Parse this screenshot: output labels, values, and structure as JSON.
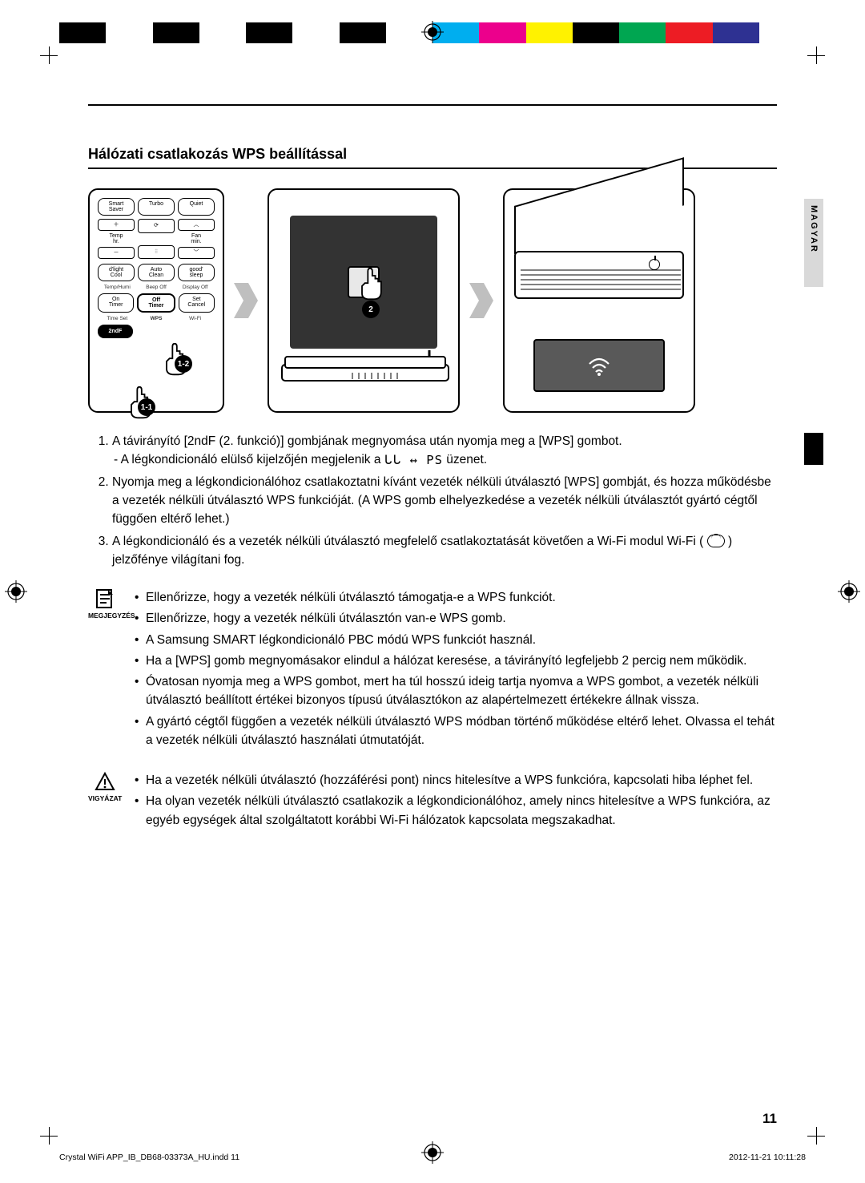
{
  "colorbar": [
    "#000000",
    "#ffffff",
    "#000000",
    "#ffffff",
    "#000000",
    "#ffffff",
    "#000000",
    "#ffffff",
    "#00aeef",
    "#ec008c",
    "#fff200",
    "#000000",
    "#00a651",
    "#ed1c24",
    "#2e3192",
    "#ffffff"
  ],
  "side_tab": "MAGYAR",
  "section_title": "Hálózati csatlakozás WPS beállítással",
  "remote": {
    "row1": [
      "Smart\nSaver",
      "Turbo",
      "Quiet"
    ],
    "temp_label": "Temp\nhr.",
    "fan_label": "Fan\nmin.",
    "row3": [
      "d'light\nCool",
      "Auto\nClean",
      "good'\nsleep"
    ],
    "sub1": [
      "Temp/Humi",
      "Beep Off",
      "Display Off"
    ],
    "row4": [
      "On\nTimer",
      "Off\nTimer",
      "Set\nCancel"
    ],
    "sub2": [
      "Time Set",
      "WPS",
      "Wi-Fi"
    ],
    "secondf": "2ndF",
    "badge_11": "1-1",
    "badge_12": "1-2"
  },
  "router": {
    "badge": "2"
  },
  "steps": [
    {
      "text": "A távirányító [2ndF (2. funkció)] gombjának megnyomása után nyomja meg a [WPS] gombot.",
      "sub": "- A légkondicionáló elülső kijelzőjén megjelenik a",
      "sub_after": "üzenet."
    },
    {
      "text": "Nyomja meg a légkondicionálóhoz csatlakoztatni kívánt vezeték nélküli útválasztó [WPS] gombját, és hozza működésbe a vezeték nélküli útválasztó WPS funkcióját. (A WPS gomb elhelyezkedése a vezeték nélküli útválasztót gyártó cégtől függően eltérő lehet.)"
    },
    {
      "text_a": "A légkondicionáló és a vezeték nélküli útválasztó megfelelő csatlakoztatását követően a Wi-Fi modul Wi-Fi (",
      "text_b": ") jelzőfénye világítani fog."
    }
  ],
  "note": {
    "label": "MEGJEGYZÉS",
    "items": [
      "Ellenőrizze, hogy a vezeték nélküli útválasztó támogatja-e a WPS funkciót.",
      "Ellenőrizze, hogy a vezeték nélküli útválasztón van-e WPS gomb.",
      "A Samsung SMART légkondicionáló PBC módú WPS funkciót használ.",
      "Ha a [WPS] gomb megnyomásakor elindul a hálózat keresése, a távirányító legfeljebb 2 percig nem működik.",
      "Óvatosan nyomja meg a WPS gombot, mert ha túl hosszú ideig tartja nyomva a WPS gombot, a vezeték nélküli útválasztó beállított értékei bizonyos típusú útválasztókon az alapértelmezett értékekre állnak vissza.",
      "A gyártó cégtől függően a vezeték nélküli útválasztó WPS módban történő működése eltérő lehet. Olvassa el tehát a vezeték nélküli útválasztó használati útmutatóját."
    ]
  },
  "caution": {
    "label": "VIGYÁZAT",
    "items": [
      "Ha a vezeték nélküli útválasztó (hozzáférési pont) nincs hitelesítve a WPS funkcióra, kapcsolati hiba léphet fel.",
      "Ha olyan vezeték nélküli útválasztó csatlakozik a légkondicionálóhoz, amely nincs hitelesítve a WPS funkcióra, az egyéb egységek által szolgáltatott korábbi Wi-Fi hálózatok kapcsolata megszakadhat."
    ]
  },
  "page_number": "11",
  "footer_left": "Crystal WiFi APP_IB_DB68-03373A_HU.indd   11",
  "footer_right": "2012-11-21   10:11:28",
  "disp_code": "ᒐᒐ ↔ PS"
}
